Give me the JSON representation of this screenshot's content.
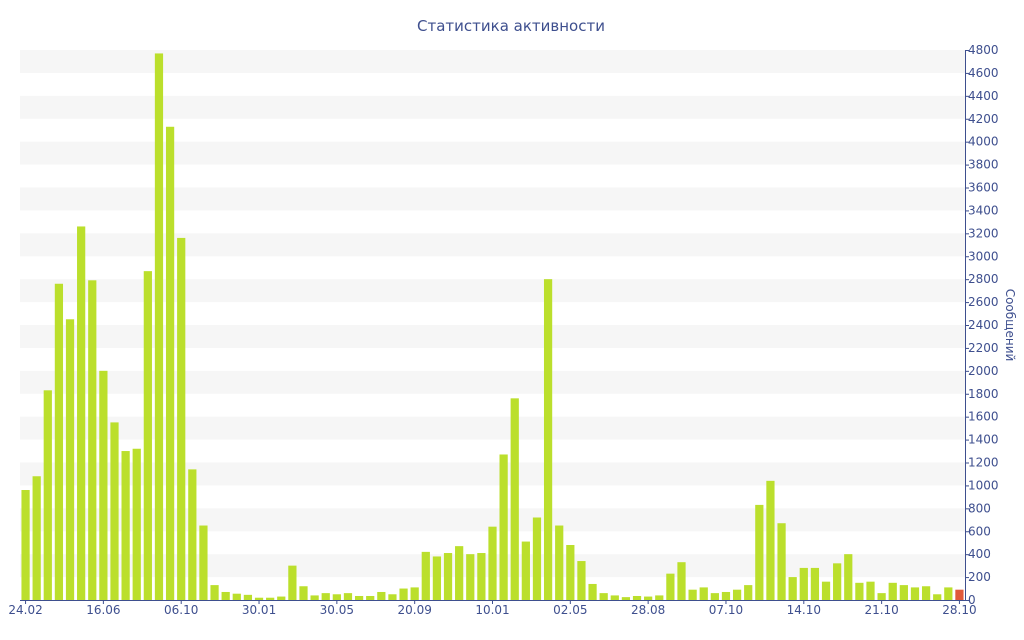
{
  "chart_data": {
    "type": "bar",
    "title": "Статистика активности",
    "ylabel": "Сообщений",
    "ylim": [
      0,
      4800
    ],
    "y_ticks": [
      0,
      200,
      400,
      600,
      800,
      1000,
      1200,
      1400,
      1600,
      1800,
      2000,
      2200,
      2400,
      2600,
      2800,
      3000,
      3200,
      3400,
      3600,
      3800,
      4000,
      4200,
      4400,
      4600,
      4800
    ],
    "x_tick_labels": [
      {
        "label": "24.02",
        "index": 0
      },
      {
        "label": "16.06",
        "index": 7
      },
      {
        "label": "06.10",
        "index": 14
      },
      {
        "label": "30.01",
        "index": 21
      },
      {
        "label": "30.05",
        "index": 28
      },
      {
        "label": "20.09",
        "index": 35
      },
      {
        "label": "10.01",
        "index": 42
      },
      {
        "label": "02.05",
        "index": 49
      },
      {
        "label": "28.08",
        "index": 56
      },
      {
        "label": "07.10",
        "index": 63
      },
      {
        "label": "14.10",
        "index": 70
      },
      {
        "label": "21.10",
        "index": 77
      },
      {
        "label": "28.10",
        "index": 84
      }
    ],
    "values": [
      960,
      1080,
      1830,
      2760,
      2450,
      3260,
      2790,
      2000,
      1550,
      1300,
      1320,
      2870,
      4770,
      4130,
      3160,
      1140,
      650,
      130,
      70,
      55,
      45,
      20,
      20,
      30,
      300,
      120,
      40,
      60,
      50,
      60,
      35,
      35,
      70,
      50,
      100,
      110,
      420,
      380,
      410,
      470,
      400,
      410,
      640,
      1270,
      1760,
      510,
      720,
      2800,
      650,
      480,
      340,
      140,
      60,
      40,
      25,
      35,
      30,
      40,
      230,
      330,
      90,
      110,
      60,
      70,
      90,
      130,
      830,
      1040,
      670,
      200,
      280,
      280,
      160,
      320,
      400,
      150,
      160,
      60,
      150,
      130,
      110,
      120,
      50,
      110,
      90
    ],
    "bar_color": "#bbdf2c",
    "highlight_color": "#e0593a",
    "highlight_index": 84,
    "grid": true,
    "band_color": "#f6f6f6",
    "text_color": "#3e4f8e"
  }
}
